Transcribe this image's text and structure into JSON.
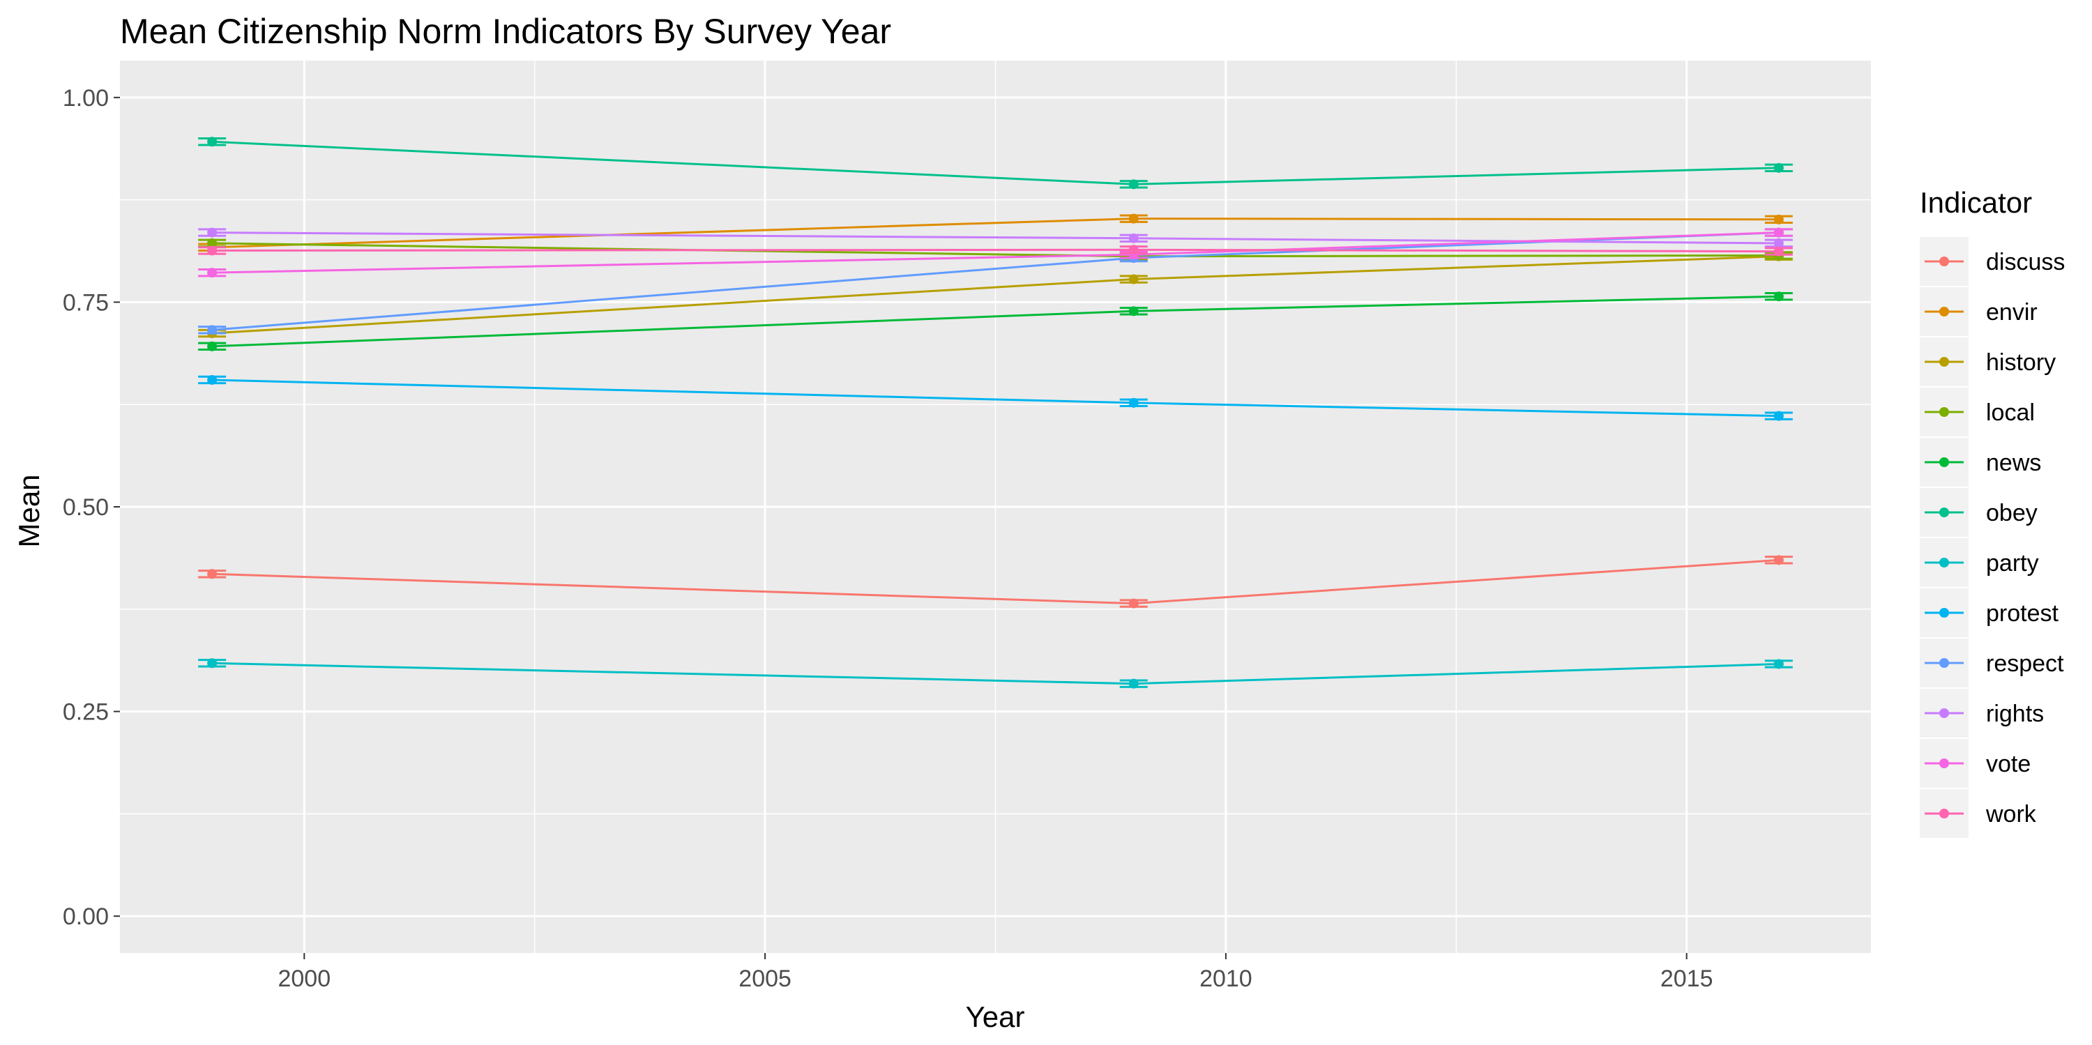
{
  "chart_data": {
    "type": "line",
    "title": "Mean Citizenship Norm Indicators By Survey Year",
    "xlabel": "Year",
    "ylabel": "Mean",
    "x": [
      1999,
      2009,
      2016
    ],
    "x_ticks": [
      "2000",
      "2005",
      "2010",
      "2015"
    ],
    "y_ticks": [
      "0.00",
      "0.25",
      "0.50",
      "0.75",
      "1.00"
    ],
    "xlim": [
      1998,
      2017
    ],
    "ylim": [
      -0.045,
      1.045
    ],
    "grid": true,
    "legend_title": "Indicator",
    "legend_position": "right",
    "series": [
      {
        "name": "discuss",
        "color": "#F8766D",
        "values": [
          0.418,
          0.382,
          0.435
        ]
      },
      {
        "name": "envir",
        "color": "#DE8C00",
        "values": [
          0.817,
          0.852,
          0.851
        ]
      },
      {
        "name": "history",
        "color": "#B79F00",
        "values": [
          0.712,
          0.778,
          0.806
        ]
      },
      {
        "name": "local",
        "color": "#7CAE00",
        "values": [
          0.822,
          0.806,
          0.807
        ]
      },
      {
        "name": "news",
        "color": "#00BA38",
        "values": [
          0.696,
          0.739,
          0.757
        ]
      },
      {
        "name": "obey",
        "color": "#00C08B",
        "values": [
          0.946,
          0.894,
          0.914
        ]
      },
      {
        "name": "party",
        "color": "#00BFC4",
        "values": [
          0.309,
          0.284,
          0.308
        ]
      },
      {
        "name": "protest",
        "color": "#00B4F0",
        "values": [
          0.655,
          0.627,
          0.611
        ]
      },
      {
        "name": "respect",
        "color": "#619CFF",
        "values": [
          0.716,
          0.804,
          0.835
        ]
      },
      {
        "name": "rights",
        "color": "#C77CFF",
        "values": [
          0.835,
          0.828,
          0.822
        ]
      },
      {
        "name": "vote",
        "color": "#F564E3",
        "values": [
          0.786,
          0.808,
          0.835
        ]
      },
      {
        "name": "work",
        "color": "#FF64B0",
        "values": [
          0.813,
          0.814,
          0.812
        ]
      }
    ]
  }
}
